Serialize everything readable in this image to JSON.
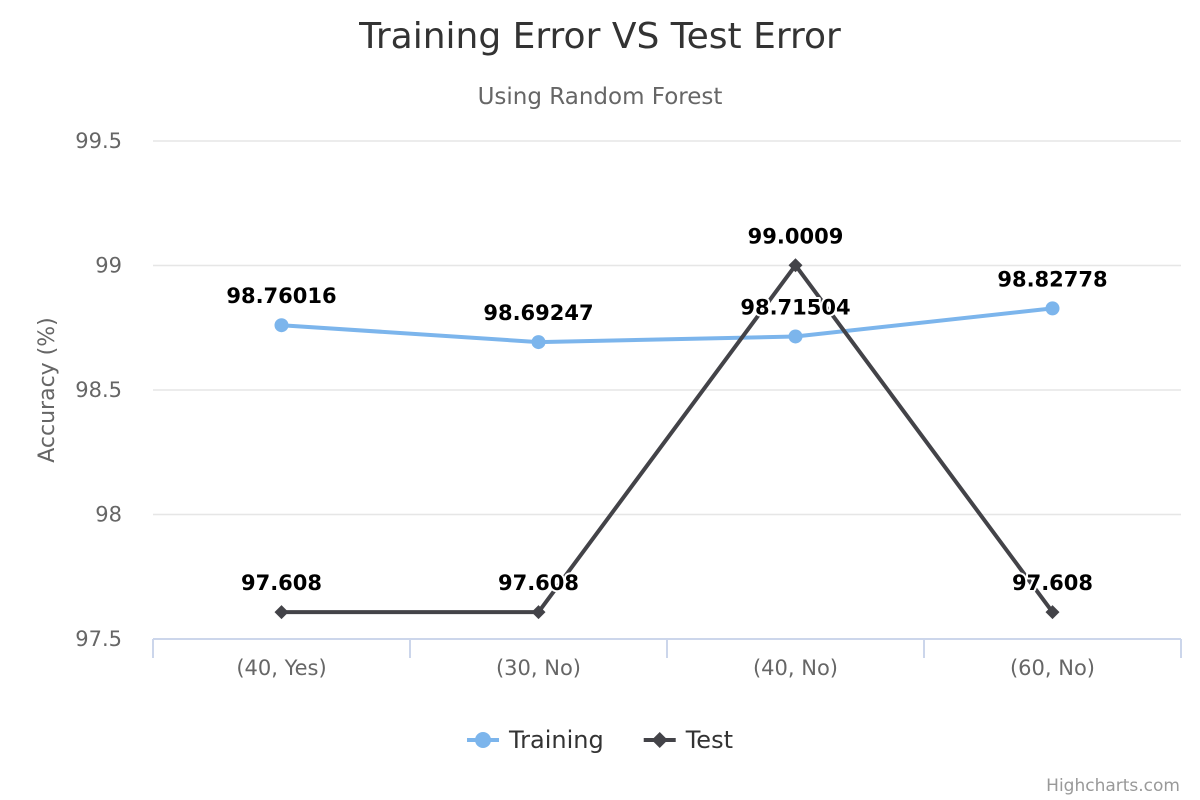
{
  "credits": "Highcharts.com",
  "chart_data": {
    "type": "line",
    "title": "Training Error VS Test Error",
    "subtitle": "Using Random Forest",
    "xlabel": "",
    "ylabel": "Accuracy (%)",
    "categories": [
      "(40, Yes)",
      "(30, No)",
      "(40, No)",
      "(60, No)"
    ],
    "ylim": [
      97.5,
      99.5
    ],
    "yticks": [
      "97.5",
      "98",
      "98.5",
      "99",
      "99.5"
    ],
    "grid": true,
    "legend_position": "bottom-center",
    "series": [
      {
        "name": "Training",
        "color": "#7cb5ec",
        "marker": "circle",
        "values": [
          98.76016,
          98.69247,
          98.71504,
          98.82778
        ],
        "labels": [
          "98.76016",
          "98.69247",
          "98.71504",
          "98.82778"
        ]
      },
      {
        "name": "Test",
        "color": "#434348",
        "marker": "diamond",
        "values": [
          97.608,
          97.608,
          99.0009,
          97.608
        ],
        "labels": [
          "97.608",
          "97.608",
          "99.0009",
          "97.608"
        ]
      }
    ]
  }
}
